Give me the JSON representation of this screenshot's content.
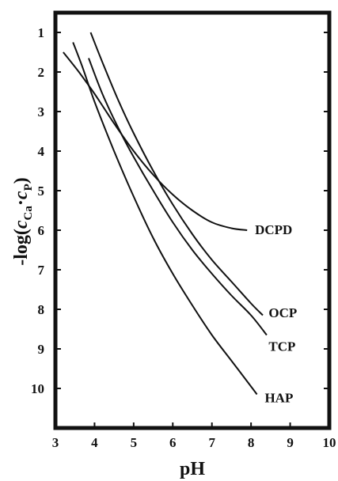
{
  "chart_data": {
    "type": "line",
    "xlabel": "pH",
    "ylabel": {
      "prefix": "-log(",
      "var1": "c",
      "sub1": "Ca",
      "dot": "·",
      "var2": "c",
      "sub2": "P",
      "suffix": ")"
    },
    "xlim": [
      3,
      10
    ],
    "ylim": [
      0.5,
      11
    ],
    "y_inverted": true,
    "x_ticks": [
      3,
      4,
      5,
      6,
      7,
      8,
      9,
      10
    ],
    "y_ticks": [
      1,
      2,
      3,
      4,
      5,
      6,
      7,
      8,
      9,
      10
    ],
    "grid": false,
    "series": [
      {
        "name": "DCPD",
        "x": [
          3.2,
          3.6,
          4.0,
          4.5,
          5.0,
          5.5,
          6.0,
          6.5,
          7.0,
          7.5,
          7.9
        ],
        "y": [
          1.5,
          2.0,
          2.55,
          3.3,
          4.0,
          4.6,
          5.1,
          5.5,
          5.8,
          5.95,
          6.0
        ]
      },
      {
        "name": "OCP",
        "x": [
          3.9,
          4.2,
          4.6,
          5.0,
          5.5,
          6.0,
          6.5,
          7.0,
          7.5,
          8.0,
          8.3
        ],
        "y": [
          1.0,
          1.75,
          2.7,
          3.55,
          4.5,
          5.35,
          6.1,
          6.75,
          7.3,
          7.85,
          8.15
        ]
      },
      {
        "name": "TCP",
        "x": [
          3.85,
          4.2,
          4.6,
          5.0,
          5.5,
          6.0,
          6.5,
          7.0,
          7.5,
          8.0,
          8.4
        ],
        "y": [
          1.65,
          2.55,
          3.4,
          4.15,
          5.0,
          5.8,
          6.5,
          7.1,
          7.65,
          8.15,
          8.65
        ]
      },
      {
        "name": "HAP",
        "x": [
          3.45,
          3.7,
          4.0,
          4.5,
          5.0,
          5.5,
          6.0,
          6.5,
          7.0,
          7.5,
          8.0,
          8.15
        ],
        "y": [
          1.25,
          1.9,
          2.75,
          4.0,
          5.15,
          6.2,
          7.1,
          7.9,
          8.65,
          9.3,
          9.95,
          10.15
        ]
      }
    ],
    "series_labels": [
      {
        "text": "DCPD",
        "x": 8.1,
        "y": 6.1
      },
      {
        "text": "OCP",
        "x": 8.45,
        "y": 8.2
      },
      {
        "text": "TCP",
        "x": 8.45,
        "y": 9.05
      },
      {
        "text": "HAP",
        "x": 8.35,
        "y": 10.35
      }
    ]
  }
}
